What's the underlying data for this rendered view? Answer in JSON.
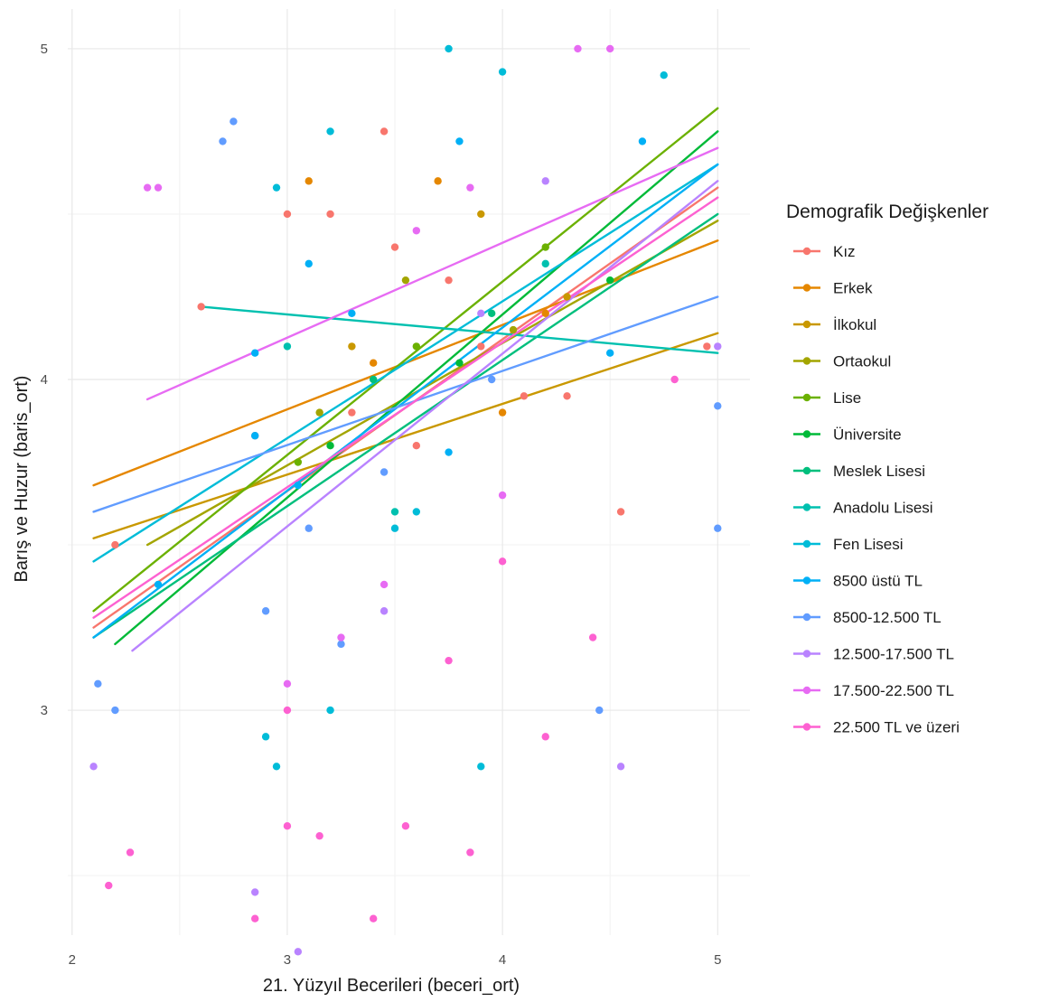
{
  "chart_data": {
    "type": "scatter",
    "xlabel": "21. Yüzyıl Becerileri (beceri_ort)",
    "ylabel": "Barış ve Huzur (baris_ort)",
    "xlim": [
      1.98,
      5.15
    ],
    "ylim": [
      2.32,
      5.12
    ],
    "x_ticks": [
      2,
      3,
      4,
      5
    ],
    "y_ticks": [
      3,
      4,
      5
    ],
    "grid": true,
    "legend": {
      "title": "Demografik Değişkenler",
      "position": "right"
    },
    "series": [
      {
        "name": "Kız",
        "color": "#F8766D",
        "line": [
          [
            2.1,
            3.25
          ],
          [
            5.0,
            4.58
          ]
        ],
        "points": [
          [
            2.6,
            4.22
          ],
          [
            2.85,
            3.83
          ],
          [
            3.0,
            4.5
          ],
          [
            3.2,
            4.5
          ],
          [
            3.3,
            3.9
          ],
          [
            3.45,
            4.75
          ],
          [
            3.5,
            4.4
          ],
          [
            3.6,
            3.8
          ],
          [
            3.75,
            4.3
          ],
          [
            3.9,
            4.1
          ],
          [
            4.1,
            3.95
          ],
          [
            4.3,
            3.95
          ],
          [
            4.55,
            3.6
          ],
          [
            4.95,
            4.1
          ],
          [
            2.2,
            3.5
          ]
        ]
      },
      {
        "name": "Erkek",
        "color": "#E58700",
        "line": [
          [
            2.1,
            3.68
          ],
          [
            5.0,
            4.42
          ]
        ],
        "points": [
          [
            3.1,
            4.6
          ],
          [
            3.4,
            4.05
          ],
          [
            3.7,
            4.6
          ],
          [
            4.0,
            3.9
          ],
          [
            4.2,
            4.2
          ]
        ]
      },
      {
        "name": "İlkokul",
        "color": "#C99800",
        "line": [
          [
            2.1,
            3.52
          ],
          [
            5.0,
            4.14
          ]
        ],
        "points": [
          [
            3.3,
            4.1
          ],
          [
            3.9,
            4.5
          ],
          [
            4.3,
            4.25
          ]
        ]
      },
      {
        "name": "Ortaokul",
        "color": "#A3A500",
        "line": [
          [
            2.35,
            3.5
          ],
          [
            5.0,
            4.48
          ]
        ],
        "points": [
          [
            3.15,
            3.9
          ],
          [
            3.55,
            4.3
          ],
          [
            4.05,
            4.15
          ]
        ]
      },
      {
        "name": "Lise",
        "color": "#6BB100",
        "line": [
          [
            2.1,
            3.3
          ],
          [
            5.0,
            4.82
          ]
        ],
        "points": [
          [
            3.05,
            3.75
          ],
          [
            3.6,
            4.1
          ],
          [
            4.2,
            4.4
          ]
        ]
      },
      {
        "name": "Üniversite",
        "color": "#00BA38",
        "line": [
          [
            2.2,
            3.2
          ],
          [
            5.0,
            4.75
          ]
        ],
        "points": [
          [
            3.2,
            3.8
          ],
          [
            3.8,
            4.05
          ],
          [
            4.5,
            4.3
          ]
        ]
      },
      {
        "name": "Meslek Lisesi",
        "color": "#00BF7D",
        "line": [
          [
            2.1,
            3.22
          ],
          [
            5.0,
            4.5
          ]
        ],
        "points": [
          [
            3.4,
            4.0
          ],
          [
            3.95,
            4.2
          ]
        ]
      },
      {
        "name": "Anadolu Lisesi",
        "color": "#00C0AF",
        "line": [
          [
            2.6,
            4.22
          ],
          [
            5.0,
            4.08
          ]
        ],
        "points": [
          [
            3.0,
            4.1
          ],
          [
            3.5,
            3.6
          ],
          [
            4.2,
            4.35
          ]
        ]
      },
      {
        "name": "Fen Lisesi",
        "color": "#00BCD8",
        "line": [
          [
            2.1,
            3.45
          ],
          [
            5.0,
            4.65
          ]
        ],
        "points": [
          [
            2.95,
            4.58
          ],
          [
            3.2,
            4.75
          ],
          [
            3.75,
            5.0
          ],
          [
            4.0,
            4.93
          ],
          [
            4.75,
            4.92
          ],
          [
            3.5,
            3.55
          ],
          [
            3.2,
            3.0
          ],
          [
            2.9,
            2.92
          ],
          [
            2.95,
            2.83
          ],
          [
            3.9,
            2.83
          ],
          [
            3.6,
            3.6
          ]
        ]
      },
      {
        "name": "8500 üstü TL",
        "color": "#00B0F6",
        "line": [
          [
            2.1,
            3.22
          ],
          [
            5.0,
            4.65
          ]
        ],
        "points": [
          [
            2.4,
            3.38
          ],
          [
            2.85,
            4.08
          ],
          [
            3.1,
            4.35
          ],
          [
            3.3,
            4.2
          ],
          [
            3.8,
            4.72
          ],
          [
            4.65,
            4.72
          ],
          [
            4.5,
            4.08
          ],
          [
            3.75,
            3.78
          ],
          [
            3.05,
            3.68
          ],
          [
            2.85,
            3.83
          ]
        ]
      },
      {
        "name": "8500-12.500 TL",
        "color": "#619CFF",
        "line": [
          [
            2.1,
            3.6
          ],
          [
            5.0,
            4.25
          ]
        ],
        "points": [
          [
            2.12,
            3.08
          ],
          [
            2.2,
            3.0
          ],
          [
            2.7,
            4.72
          ],
          [
            2.75,
            4.78
          ],
          [
            2.9,
            3.3
          ],
          [
            3.1,
            3.55
          ],
          [
            3.25,
            3.2
          ],
          [
            3.45,
            3.72
          ],
          [
            3.95,
            4.0
          ],
          [
            4.45,
            3.0
          ],
          [
            5.0,
            3.92
          ],
          [
            5.0,
            3.55
          ]
        ]
      },
      {
        "name": "12.500-17.500 TL",
        "color": "#B983FF",
        "line": [
          [
            2.28,
            3.18
          ],
          [
            5.0,
            4.6
          ]
        ],
        "points": [
          [
            2.1,
            2.83
          ],
          [
            2.85,
            2.45
          ],
          [
            3.05,
            2.27
          ],
          [
            3.45,
            3.3
          ],
          [
            3.9,
            4.2
          ],
          [
            4.2,
            4.6
          ],
          [
            4.55,
            2.83
          ],
          [
            5.0,
            4.1
          ]
        ]
      },
      {
        "name": "17.500-22.500 TL",
        "color": "#E76BF3",
        "line": [
          [
            2.35,
            3.94
          ],
          [
            5.0,
            4.7
          ]
        ],
        "points": [
          [
            2.35,
            4.58
          ],
          [
            2.4,
            4.58
          ],
          [
            3.6,
            4.45
          ],
          [
            3.85,
            4.58
          ],
          [
            4.35,
            5.0
          ],
          [
            4.5,
            5.0
          ],
          [
            4.0,
            3.65
          ],
          [
            3.45,
            3.38
          ],
          [
            3.0,
            3.08
          ],
          [
            3.25,
            3.22
          ]
        ]
      },
      {
        "name": "22.500 TL ve üzeri",
        "color": "#FD61D1",
        "line": [
          [
            2.1,
            3.28
          ],
          [
            5.0,
            4.55
          ]
        ],
        "points": [
          [
            2.27,
            2.57
          ],
          [
            2.17,
            2.47
          ],
          [
            2.85,
            2.37
          ],
          [
            3.0,
            2.65
          ],
          [
            3.15,
            2.62
          ],
          [
            3.4,
            2.37
          ],
          [
            3.55,
            2.65
          ],
          [
            3.85,
            2.57
          ],
          [
            4.2,
            2.92
          ],
          [
            4.42,
            3.22
          ],
          [
            3.75,
            3.15
          ],
          [
            3.0,
            3.0
          ],
          [
            4.0,
            3.45
          ],
          [
            4.8,
            4.0
          ]
        ]
      }
    ]
  }
}
